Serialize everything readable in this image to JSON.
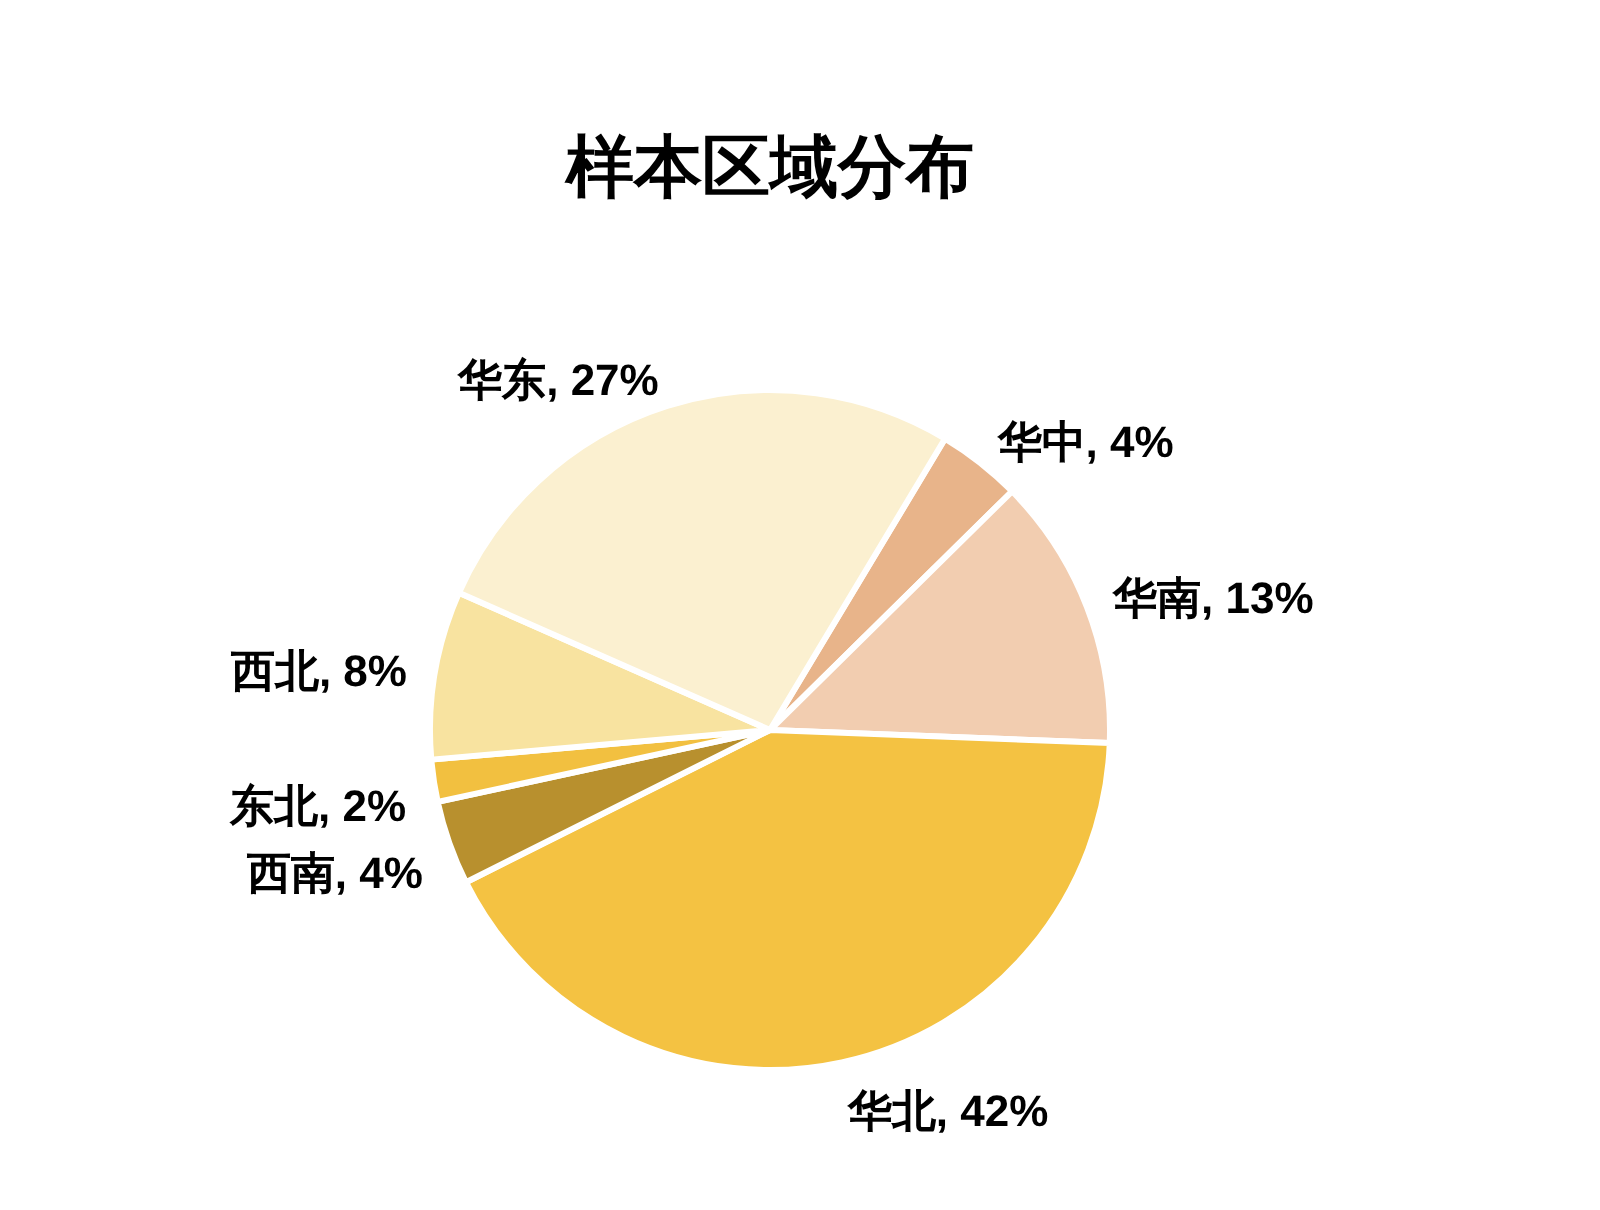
{
  "chart_data": {
    "type": "pie",
    "title": "样本区域分布",
    "categories": [
      "华中",
      "华南",
      "华北",
      "西南",
      "东北",
      "西北",
      "华东"
    ],
    "values": [
      4,
      13,
      42,
      4,
      2,
      8,
      27
    ],
    "colors": [
      "#e8b48a",
      "#f2cdb0",
      "#f4c242",
      "#b8902e",
      "#f2c040",
      "#f8e3a0",
      "#fbf0d0"
    ],
    "value_labels": [
      "4%",
      "13%",
      "42%",
      "4%",
      "2%",
      "8%",
      "27%"
    ]
  }
}
